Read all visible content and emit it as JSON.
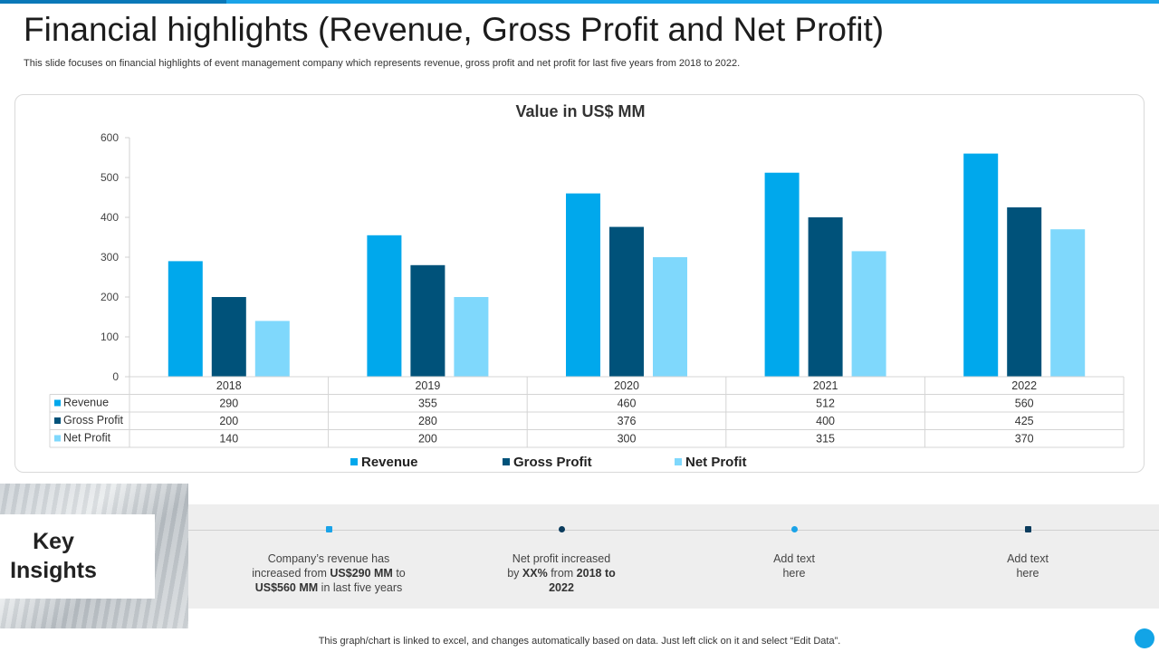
{
  "title": "Financial highlights (Revenue, Gross Profit and Net Profit)",
  "subtitle": "This slide focuses on financial highlights of event management company which represents revenue, gross profit and net profit for last five years from 2018 to 2022.",
  "colors": {
    "revenue": "#00a8ec",
    "gross_profit": "#00527a",
    "net_profit": "#7fd8fc",
    "accent": "#1aa3e8"
  },
  "chart_data": {
    "type": "bar",
    "title": "Value in US$ MM",
    "categories": [
      "2018",
      "2019",
      "2020",
      "2021",
      "2022"
    ],
    "series": [
      {
        "name": "Revenue",
        "values": [
          290,
          355,
          460,
          512,
          560
        ]
      },
      {
        "name": "Gross Profit",
        "values": [
          200,
          280,
          376,
          400,
          425
        ]
      },
      {
        "name": "Net Profit",
        "values": [
          140,
          200,
          300,
          315,
          370
        ]
      }
    ],
    "ylim": [
      0,
      600
    ],
    "yticks": [
      0,
      100,
      200,
      300,
      400,
      500,
      600
    ],
    "data_table": true,
    "legend": "bottom"
  },
  "key_insights": {
    "heading": "Key\nInsights",
    "items": [
      {
        "before": "Company’s revenue  has increased from ",
        "b1": "US$290  MM",
        "mid": " to ",
        "b2": "US$560  MM",
        "after": " in last five  years",
        "dot_shape": "square",
        "dot_color": "#1aa3e8"
      },
      {
        "before": "Net profit increased by ",
        "b1": "XX%",
        "mid": " from ",
        "b2": "2018 to 2022",
        "after": "",
        "dot_shape": "round",
        "dot_color": "#0b3c5d"
      },
      {
        "before": "Add text here",
        "b1": "",
        "mid": "",
        "b2": "",
        "after": "",
        "dot_shape": "round",
        "dot_color": "#1aa3e8"
      },
      {
        "before": "Add text here",
        "b1": "",
        "mid": "",
        "b2": "",
        "after": "",
        "dot_shape": "square",
        "dot_color": "#0b3c5d"
      }
    ]
  },
  "footer": "This graph/chart is linked to excel,  and changes automatically based on data. Just left click on it and select “Edit Data”."
}
